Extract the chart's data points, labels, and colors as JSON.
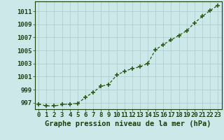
{
  "x": [
    0,
    1,
    2,
    3,
    4,
    5,
    6,
    7,
    8,
    9,
    10,
    11,
    12,
    13,
    14,
    15,
    16,
    17,
    18,
    19,
    20,
    21,
    22,
    23
  ],
  "y": [
    996.8,
    996.5,
    996.5,
    996.7,
    996.8,
    996.9,
    997.8,
    998.6,
    999.5,
    999.8,
    1001.2,
    1001.8,
    1002.2,
    1002.5,
    1003.0,
    1005.1,
    1005.9,
    1006.6,
    1007.3,
    1008.0,
    1009.2,
    1010.2,
    1011.1,
    1011.9
  ],
  "line_color": "#2d5a1b",
  "marker_color": "#2d5a1b",
  "bg_color": "#cce8e8",
  "grid_color": "#aacccc",
  "ylabel_ticks": [
    997,
    999,
    1001,
    1003,
    1005,
    1007,
    1009,
    1011
  ],
  "ylim": [
    996.0,
    1012.5
  ],
  "xlim": [
    -0.5,
    23.5
  ],
  "xlabel": "Graphe pression niveau de la mer (hPa)",
  "xlabel_fontsize": 7.5,
  "tick_fontsize": 6.5,
  "title_color": "#1a4010",
  "figsize": [
    3.2,
    2.0
  ],
  "dpi": 100
}
